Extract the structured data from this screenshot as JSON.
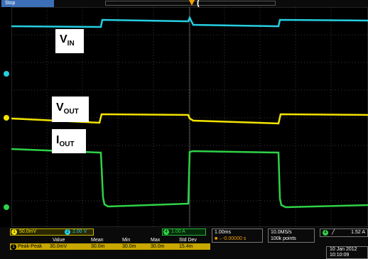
{
  "status": {
    "run_state": "Stop"
  },
  "top_snippet": "(",
  "labels": {
    "vin": {
      "main": "V",
      "sub": "IN"
    },
    "vout": {
      "main": "V",
      "sub": "OUT"
    },
    "iout": {
      "main": "I",
      "sub": "OUT"
    }
  },
  "channels": {
    "ch1": {
      "num": "1",
      "scale": "50.0mV",
      "color": "#f3e400"
    },
    "ch2": {
      "num": "2",
      "scale": "2.00 V",
      "color": "#25cfe0"
    },
    "ch4": {
      "num": "4",
      "scale": "1.00 A",
      "color": "#2fd248"
    }
  },
  "channel_markers": {
    "left": [
      "2",
      "1",
      "4"
    ]
  },
  "timebase": {
    "per_div": "1.00ms",
    "offset": "■→-0.00000 s"
  },
  "acquisition": {
    "sample_rate": "10.0MS/s",
    "record_length": "100k points"
  },
  "trigger": {
    "source": "4",
    "slope": "╱",
    "level": "1.52 A"
  },
  "measurements": {
    "headers": [
      "Value",
      "Mean",
      "Min",
      "Max",
      "Std Dev"
    ],
    "row": {
      "channel": "1",
      "label": "Peak-Peak",
      "values": [
        "30.0mV",
        "30.0m",
        "30.0m",
        "30.0m",
        "15.4m"
      ]
    }
  },
  "datetime": {
    "date": "10 Jan  2012",
    "time": "10:10:09"
  },
  "colors": {
    "vin_trace": "#25cfe0",
    "vout_trace": "#f3e400",
    "iout_trace": "#2fd248",
    "stop_badge": "#3d6fb8",
    "trigger_marker": "#f0a000"
  }
}
